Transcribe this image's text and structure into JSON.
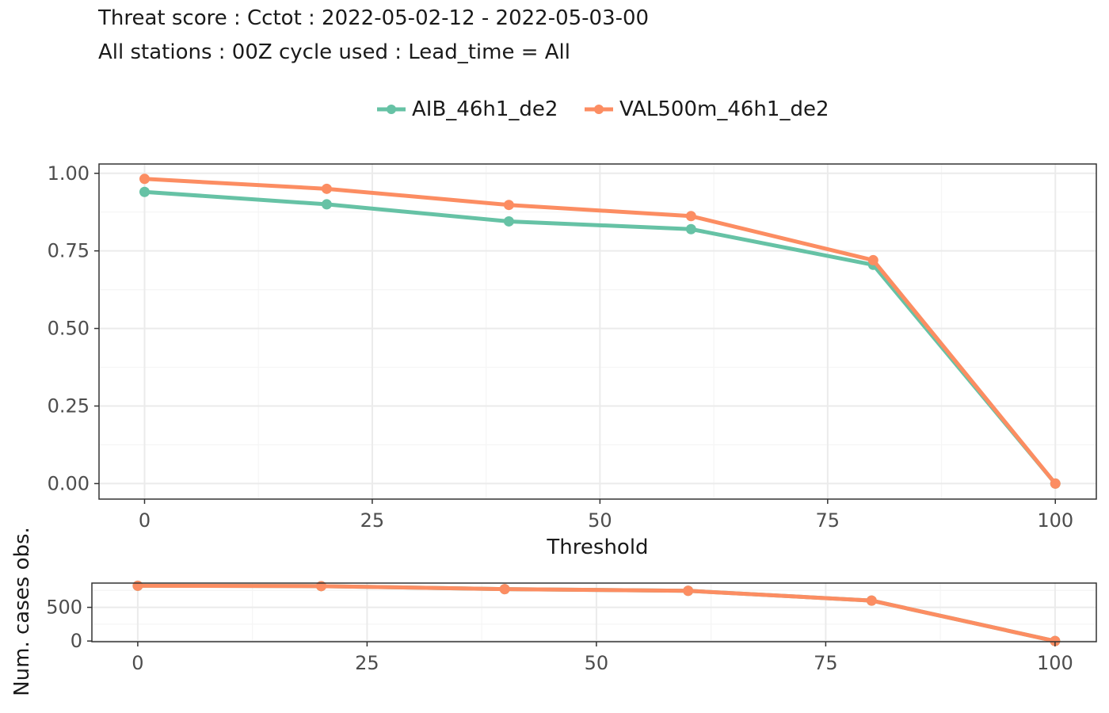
{
  "title_line1": "Threat score : Cctot : 2022-05-02-12 - 2022-05-03-00",
  "title_line2": "All stations : 00Z cycle used : Lead_time = All",
  "colors": {
    "AIB_46h1_de2": "#66c2a5",
    "VAL500m_46h1_de2": "#fc8d62",
    "grid_major": "#ebebeb",
    "grid_minor": "#f5f5f5",
    "panel_border": "#333333",
    "tick_label": "#4d4d4d"
  },
  "chart_data": [
    {
      "type": "line",
      "xlabel": "Threshold",
      "ylabel": "",
      "x": [
        0,
        20,
        40,
        60,
        80,
        100
      ],
      "xlim": [
        -5,
        104.5
      ],
      "ylim": [
        -0.05,
        1.03
      ],
      "x_ticks": [
        0,
        25,
        50,
        75,
        100
      ],
      "x_tick_labels": [
        "0",
        "25",
        "50",
        "75",
        "100"
      ],
      "y_ticks": [
        0,
        0.25,
        0.5,
        0.75,
        1.0
      ],
      "y_tick_labels": [
        "0.00",
        "0.25",
        "0.50",
        "0.75",
        "1.00"
      ],
      "grid": true,
      "legend_position": "top",
      "series": [
        {
          "name": "AIB_46h1_de2",
          "values": [
            0.94,
            0.9,
            0.845,
            0.82,
            0.705,
            0.0
          ]
        },
        {
          "name": "VAL500m_46h1_de2",
          "values": [
            0.982,
            0.95,
            0.898,
            0.862,
            0.72,
            0.0
          ]
        }
      ]
    },
    {
      "type": "line",
      "xlabel": "",
      "ylabel": "Num. cases obs.",
      "x": [
        0,
        20,
        40,
        60,
        80,
        100
      ],
      "xlim": [
        -5,
        104.5
      ],
      "ylim": [
        -10,
        860
      ],
      "x_ticks": [
        0,
        25,
        50,
        75,
        100
      ],
      "x_tick_labels": [
        "0",
        "25",
        "50",
        "75",
        "100"
      ],
      "y_ticks": [
        0,
        500
      ],
      "y_tick_labels": [
        "0",
        "500"
      ],
      "grid": true,
      "series": [
        {
          "name": "AIB_46h1_de2",
          "values": [
            820,
            815,
            770,
            745,
            600,
            0
          ]
        },
        {
          "name": "VAL500m_46h1_de2",
          "values": [
            820,
            815,
            770,
            745,
            600,
            0
          ]
        }
      ]
    }
  ]
}
